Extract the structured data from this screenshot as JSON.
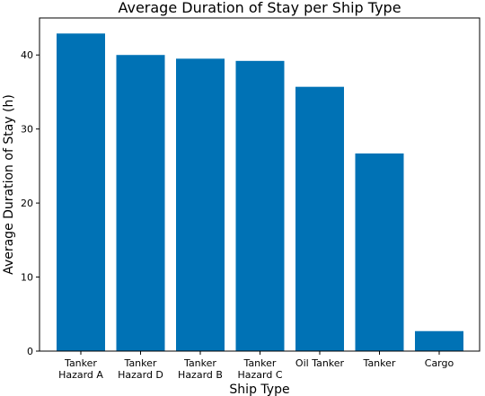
{
  "chart_data": {
    "type": "bar",
    "title": "Average Duration of Stay per Ship Type",
    "xlabel": "Ship Type",
    "ylabel": "Average Duration of Stay (h)",
    "categories": [
      [
        "Tanker",
        "Hazard A"
      ],
      [
        "Tanker",
        "Hazard D"
      ],
      [
        "Tanker",
        "Hazard B"
      ],
      [
        "Tanker",
        "Hazard C"
      ],
      [
        "Oil Tanker"
      ],
      [
        "Tanker"
      ],
      [
        "Cargo"
      ]
    ],
    "values": [
      42.9,
      40.0,
      39.5,
      39.2,
      35.7,
      26.7,
      2.7
    ],
    "ylim": [
      0,
      45
    ],
    "yticks": [
      0,
      10,
      20,
      30,
      40
    ],
    "bar_color": "#0072b5",
    "grid": false,
    "legend": "none"
  }
}
